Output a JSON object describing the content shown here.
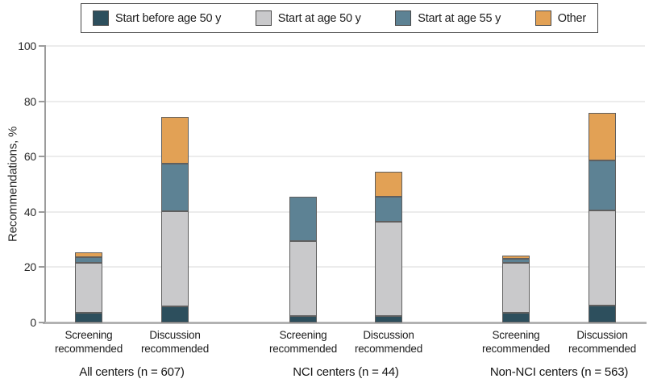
{
  "figure_title": "",
  "chart_data": {
    "type": "bar",
    "stacked": true,
    "title": "",
    "xlabel": "",
    "ylabel": "Recommendations, %",
    "ylim": [
      0,
      100
    ],
    "yticks": [
      0,
      20,
      40,
      60,
      80,
      100
    ],
    "grid": "horizontal-light",
    "legend_position": "top",
    "series": [
      {
        "name": "Start before age 50 y",
        "color": "#2d4f5d"
      },
      {
        "name": "Start at age 50 y",
        "color": "#c9c9cb"
      },
      {
        "name": "Start at age 55 y",
        "color": "#5d8294"
      },
      {
        "name": "Other",
        "color": "#e2a155"
      }
    ],
    "groups": [
      {
        "label": "All centers (n = 607)",
        "bars": [
          {
            "category": [
              "Screening",
              "recommended"
            ],
            "values": [
              3.6,
              17.9,
              2.1,
              1.7
            ],
            "total": 25.3
          },
          {
            "category": [
              "Discussion",
              "recommended"
            ],
            "values": [
              5.8,
              34.5,
              17.2,
              16.8
            ],
            "total": 74.3
          }
        ]
      },
      {
        "label": "NCI centers (n = 44)",
        "bars": [
          {
            "category": [
              "Screening",
              "recommended"
            ],
            "values": [
              2.3,
              27.2,
              16.0,
              0
            ],
            "total": 45.5
          },
          {
            "category": [
              "Discussion",
              "recommended"
            ],
            "values": [
              2.3,
              34.1,
              9.1,
              9.0
            ],
            "total": 54.5
          }
        ]
      },
      {
        "label": "Non-NCI centers (n = 563)",
        "bars": [
          {
            "category": [
              "Screening",
              "recommended"
            ],
            "values": [
              3.6,
              17.9,
              1.5,
              1.1
            ],
            "total": 24.1
          },
          {
            "category": [
              "Discussion",
              "recommended"
            ],
            "values": [
              6.0,
              34.5,
              18.0,
              17.3
            ],
            "total": 75.8
          }
        ]
      }
    ]
  }
}
